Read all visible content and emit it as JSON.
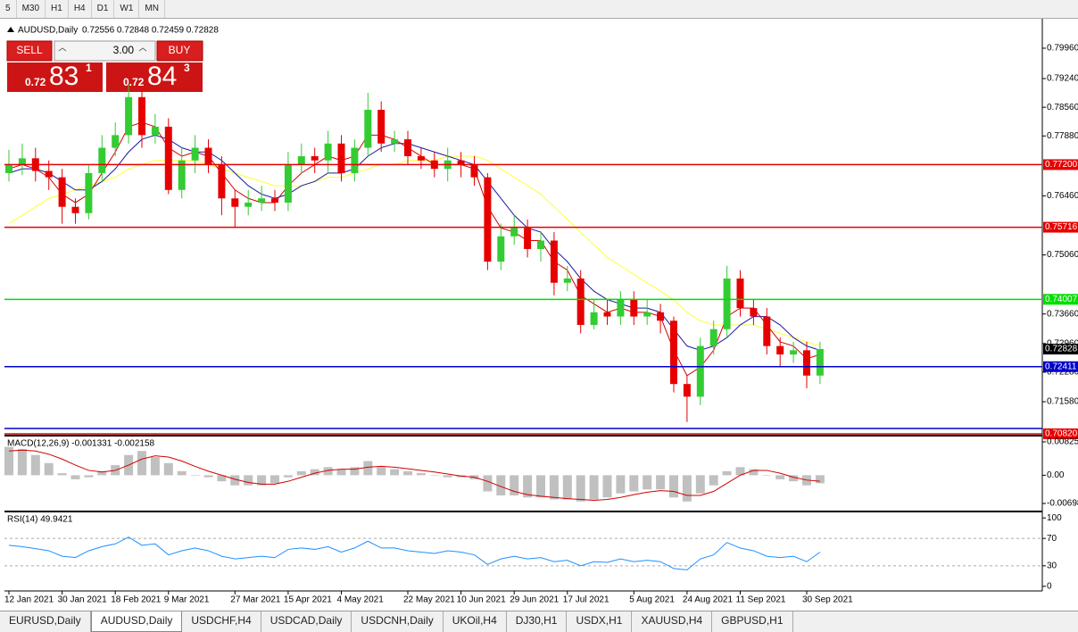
{
  "toolbar": [
    "5",
    "M30",
    "H1",
    "H4",
    "D1",
    "W1",
    "MN"
  ],
  "trade_panel": {
    "sell": "SELL",
    "lot": "3.00",
    "buy": "BUY",
    "sell_price": {
      "small": "0.72",
      "big": "83",
      "sup": "1"
    },
    "buy_price": {
      "small": "0.72",
      "big": "84",
      "sup": "3"
    }
  },
  "chart_data": {
    "type": "candlestick",
    "title": "AUDUSD,Daily",
    "ohlc_text": "0.72556 0.72848 0.72459 0.72828",
    "up_color": "#33cc33",
    "down_color": "#e60000",
    "categories": [
      "12 Jan 2021",
      null,
      null,
      null,
      "30 Jan 2021",
      null,
      null,
      null,
      "18 Feb 2021",
      null,
      null,
      null,
      "9 Mar 2021",
      null,
      null,
      null,
      null,
      "27 Mar 2021",
      null,
      null,
      null,
      "15 Apr 2021",
      null,
      null,
      null,
      "4 May 2021",
      null,
      null,
      null,
      null,
      "22 May 2021",
      null,
      null,
      null,
      "10 Jun 2021",
      null,
      null,
      null,
      "29 Jun 2021",
      null,
      null,
      null,
      "17 Jul 2021",
      null,
      null,
      null,
      null,
      "5 Aug 2021",
      null,
      null,
      null,
      "24 Aug 2021",
      null,
      null,
      null,
      "11 Sep 2021",
      null,
      null,
      null,
      null,
      "30 Sep 2021",
      null
    ],
    "open": [
      0.77,
      0.772,
      0.7735,
      0.7705,
      0.769,
      0.762,
      0.7605,
      0.77,
      0.776,
      0.779,
      0.788,
      0.779,
      0.781,
      0.766,
      0.773,
      0.776,
      0.772,
      0.764,
      0.762,
      0.763,
      0.764,
      0.763,
      0.772,
      0.774,
      0.773,
      0.777,
      0.77,
      0.776,
      0.785,
      0.777,
      0.778,
      0.774,
      0.773,
      0.771,
      0.773,
      0.772,
      0.769,
      0.749,
      0.755,
      0.757,
      0.752,
      0.754,
      0.744,
      0.745,
      0.734,
      0.737,
      0.736,
      0.74,
      0.736,
      0.737,
      0.735,
      0.72,
      0.717,
      0.729,
      0.733,
      0.745,
      0.738,
      0.736,
      0.729,
      0.727,
      0.728,
      0.722
    ],
    "high": [
      0.7755,
      0.777,
      0.776,
      0.773,
      0.771,
      0.764,
      0.772,
      0.779,
      0.782,
      0.791,
      0.79,
      0.784,
      0.783,
      0.776,
      0.779,
      0.778,
      0.774,
      0.766,
      0.766,
      0.767,
      0.766,
      0.775,
      0.777,
      0.776,
      0.78,
      0.779,
      0.778,
      0.789,
      0.787,
      0.78,
      0.78,
      0.776,
      0.775,
      0.776,
      0.775,
      0.774,
      0.77,
      0.758,
      0.76,
      0.759,
      0.756,
      0.756,
      0.748,
      0.747,
      0.74,
      0.74,
      0.742,
      0.742,
      0.74,
      0.739,
      0.736,
      0.722,
      0.731,
      0.735,
      0.748,
      0.747,
      0.74,
      0.738,
      0.731,
      0.73,
      0.73,
      0.73
    ],
    "low": [
      0.768,
      0.7695,
      0.768,
      0.766,
      0.758,
      0.758,
      0.759,
      0.768,
      0.774,
      0.777,
      0.776,
      0.777,
      0.765,
      0.764,
      0.77,
      0.77,
      0.76,
      0.757,
      0.76,
      0.761,
      0.761,
      0.761,
      0.77,
      0.77,
      0.77,
      0.768,
      0.768,
      0.774,
      0.775,
      0.775,
      0.772,
      0.771,
      0.769,
      0.768,
      0.769,
      0.767,
      0.747,
      0.747,
      0.753,
      0.75,
      0.749,
      0.741,
      0.742,
      0.732,
      0.733,
      0.734,
      0.734,
      0.734,
      0.734,
      0.732,
      0.718,
      0.711,
      0.715,
      0.727,
      0.731,
      0.736,
      0.734,
      0.727,
      0.724,
      0.725,
      0.719,
      0.72
    ],
    "close": [
      0.772,
      0.7735,
      0.7705,
      0.769,
      0.762,
      0.7605,
      0.77,
      0.776,
      0.779,
      0.788,
      0.779,
      0.781,
      0.766,
      0.773,
      0.776,
      0.772,
      0.764,
      0.762,
      0.763,
      0.764,
      0.763,
      0.772,
      0.774,
      0.773,
      0.777,
      0.77,
      0.776,
      0.785,
      0.777,
      0.778,
      0.774,
      0.773,
      0.771,
      0.773,
      0.772,
      0.769,
      0.749,
      0.755,
      0.757,
      0.752,
      0.754,
      0.744,
      0.745,
      0.734,
      0.737,
      0.736,
      0.74,
      0.736,
      0.737,
      0.735,
      0.72,
      0.717,
      0.729,
      0.733,
      0.745,
      0.738,
      0.736,
      0.729,
      0.727,
      0.728,
      0.722,
      0.7283
    ],
    "moving_averages": [
      {
        "color": "#ffff33",
        "values": [
          0.758,
          0.76,
          0.762,
          0.764,
          0.765,
          0.766,
          0.767,
          0.768,
          0.769,
          0.771,
          0.772,
          0.773,
          0.773,
          0.773,
          0.773,
          0.772,
          0.771,
          0.77,
          0.769,
          0.768,
          0.767,
          0.767,
          0.767,
          0.768,
          0.769,
          0.769,
          0.77,
          0.771,
          0.772,
          0.772,
          0.773,
          0.773,
          0.773,
          0.774,
          0.774,
          0.774,
          0.773,
          0.771,
          0.769,
          0.767,
          0.765,
          0.762,
          0.759,
          0.756,
          0.753,
          0.75,
          0.748,
          0.746,
          0.744,
          0.742,
          0.74,
          0.737,
          0.735,
          0.734,
          0.734,
          0.734,
          0.734,
          0.733,
          0.732,
          0.731,
          0.73,
          0.729
        ]
      },
      {
        "color": "#1a1aa0",
        "values": [
          0.77,
          0.771,
          0.771,
          0.77,
          0.768,
          0.766,
          0.766,
          0.768,
          0.771,
          0.775,
          0.778,
          0.779,
          0.778,
          0.776,
          0.775,
          0.775,
          0.773,
          0.77,
          0.767,
          0.765,
          0.764,
          0.765,
          0.767,
          0.768,
          0.77,
          0.77,
          0.771,
          0.774,
          0.776,
          0.777,
          0.777,
          0.776,
          0.775,
          0.774,
          0.773,
          0.772,
          0.768,
          0.764,
          0.76,
          0.757,
          0.756,
          0.752,
          0.749,
          0.745,
          0.742,
          0.74,
          0.739,
          0.738,
          0.738,
          0.737,
          0.733,
          0.729,
          0.728,
          0.729,
          0.731,
          0.734,
          0.736,
          0.736,
          0.734,
          0.731,
          0.729,
          0.728
        ]
      },
      {
        "color": "#d00000",
        "values": [
          0.771,
          0.772,
          0.771,
          0.769,
          0.765,
          0.763,
          0.765,
          0.77,
          0.775,
          0.781,
          0.782,
          0.781,
          0.776,
          0.774,
          0.775,
          0.774,
          0.77,
          0.766,
          0.764,
          0.763,
          0.763,
          0.767,
          0.77,
          0.772,
          0.774,
          0.773,
          0.774,
          0.779,
          0.779,
          0.778,
          0.776,
          0.774,
          0.772,
          0.772,
          0.772,
          0.771,
          0.762,
          0.757,
          0.756,
          0.754,
          0.754,
          0.749,
          0.747,
          0.741,
          0.739,
          0.737,
          0.738,
          0.737,
          0.737,
          0.736,
          0.728,
          0.722,
          0.724,
          0.728,
          0.736,
          0.738,
          0.738,
          0.734,
          0.73,
          0.729,
          0.726,
          0.727
        ]
      }
    ],
    "ylim": [
      0.70798,
      0.80637
    ],
    "yticks": [
      {
        "value": 0.7996,
        "label": "0.79960"
      },
      {
        "value": 0.7924,
        "label": "0.79240"
      },
      {
        "value": 0.7856,
        "label": "0.78560"
      },
      {
        "value": 0.7788,
        "label": "0.77880"
      },
      {
        "value": 0.7646,
        "label": "0.76460"
      },
      {
        "value": 0.7506,
        "label": "0.75060"
      },
      {
        "value": 0.7366,
        "label": "0.73660"
      },
      {
        "value": 0.7296,
        "label": "0.72960"
      },
      {
        "value": 0.7228,
        "label": "0.72280"
      },
      {
        "value": 0.7158,
        "label": "0.71580"
      }
    ],
    "levels": [
      {
        "value": 0.772,
        "label": "0.77200",
        "color": "#e60000"
      },
      {
        "value": 0.75716,
        "label": "0.75716",
        "color": "#e60000"
      },
      {
        "value": 0.74007,
        "label": "0.74007",
        "color": "#00dd00"
      },
      {
        "value": 0.72411,
        "label": "0.72411",
        "color": "#0000cc"
      },
      {
        "value": 0.70946,
        "color": "#0000cc"
      },
      {
        "value": 0.7082,
        "label": "0.70820",
        "color": "#e60000"
      }
    ],
    "price_label": {
      "value": 0.72828,
      "label": "0.72828"
    },
    "macd": {
      "label": "MACD(12,26,9) -0.001331 -0.002158",
      "histogram_color": "#c0c0c0",
      "signal_color": "#d00000",
      "ylim": [
        -0.00875,
        0.00958
      ],
      "yticks": [
        0.008253,
        {
          "value": 0,
          "label": "0.00"
        },
        -0.006983
      ],
      "histogram": [
        0.007,
        0.0065,
        0.005,
        0.003,
        0.0005,
        -0.001,
        -0.0005,
        0.001,
        0.0025,
        0.005,
        0.006,
        0.0045,
        0.003,
        0.001,
        0.0,
        -0.0005,
        -0.0015,
        -0.0025,
        -0.0025,
        -0.0025,
        -0.002,
        -0.0005,
        0.001,
        0.0015,
        0.002,
        0.0015,
        0.002,
        0.0035,
        0.002,
        0.0015,
        0.001,
        0.0005,
        0.0,
        -0.0005,
        -0.0005,
        -0.001,
        -0.004,
        -0.005,
        -0.005,
        -0.0055,
        -0.0055,
        -0.006,
        -0.006,
        -0.0065,
        -0.006,
        -0.0055,
        -0.0045,
        -0.004,
        -0.0035,
        -0.0035,
        -0.0055,
        -0.0065,
        -0.0045,
        -0.0025,
        0.001,
        0.002,
        0.0015,
        0.0,
        -0.001,
        -0.0015,
        -0.0025,
        -0.002
      ],
      "signal": [
        0.006,
        0.0062,
        0.006,
        0.0052,
        0.004,
        0.0025,
        0.0012,
        0.0008,
        0.0012,
        0.0025,
        0.004,
        0.0048,
        0.0045,
        0.0035,
        0.0022,
        0.001,
        0.0,
        -0.001,
        -0.0018,
        -0.0022,
        -0.0022,
        -0.0015,
        -0.0005,
        0.0005,
        0.0012,
        0.0015,
        0.0015,
        0.002,
        0.0022,
        0.002,
        0.0016,
        0.0012,
        0.0008,
        0.0003,
        -0.0002,
        -0.0005,
        -0.0015,
        -0.0028,
        -0.004,
        -0.0048,
        -0.0052,
        -0.0055,
        -0.0058,
        -0.006,
        -0.0062,
        -0.006,
        -0.0055,
        -0.0048,
        -0.0042,
        -0.0038,
        -0.004,
        -0.005,
        -0.005,
        -0.004,
        -0.002,
        0.0,
        0.0012,
        0.0012,
        0.0005,
        -0.0005,
        -0.0012,
        -0.0015
      ]
    },
    "rsi": {
      "label": "RSI(14) 49.9421",
      "color": "#1e90ff",
      "ylim": [
        -6.8,
        108.1
      ],
      "yticks": [
        100,
        70,
        30,
        0
      ],
      "levels": [
        70,
        30
      ],
      "values": [
        60,
        58,
        55,
        52,
        44,
        42,
        52,
        58,
        62,
        72,
        60,
        62,
        46,
        52,
        56,
        52,
        44,
        40,
        42,
        44,
        42,
        54,
        56,
        54,
        58,
        50,
        56,
        66,
        56,
        56,
        52,
        50,
        48,
        52,
        50,
        46,
        32,
        40,
        44,
        40,
        42,
        36,
        38,
        30,
        36,
        35,
        40,
        36,
        38,
        36,
        26,
        24,
        40,
        46,
        64,
        56,
        52,
        44,
        42,
        44,
        36,
        50
      ]
    }
  },
  "tabs": [
    "EURUSD,Daily",
    "AUDUSD,Daily",
    "USDCHF,H4",
    "USDCAD,Daily",
    "USDCNH,Daily",
    "UKOil,H4",
    "DJ30,H1",
    "USDX,H1",
    "XAUUSD,H4",
    "GBPUSD,H1"
  ],
  "active_tab": 1
}
